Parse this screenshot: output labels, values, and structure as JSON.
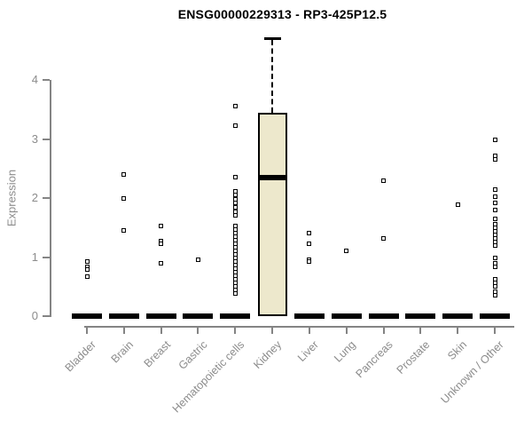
{
  "chart_data": {
    "type": "boxplot",
    "title": "ENSG00000229313 - RP3-425P12.5",
    "ylabel": "Expression",
    "xlabel": "",
    "ylim": [
      0,
      4.85
    ],
    "yticks": [
      0,
      1,
      2,
      3,
      4
    ],
    "grid": false,
    "legend": "none",
    "categories": [
      "Bladder",
      "Brain",
      "Breast",
      "Gastric",
      "Hematopoietic cells",
      "Kidney",
      "Liver",
      "Lung",
      "Pancreas",
      "Prostate",
      "Skin",
      "Unknown / Other"
    ],
    "boxes": [
      {
        "category": "Bladder",
        "q1": 0,
        "median": 0,
        "q3": 0,
        "whisker_low": 0,
        "whisker_high": 0
      },
      {
        "category": "Brain",
        "q1": 0,
        "median": 0,
        "q3": 0,
        "whisker_low": 0,
        "whisker_high": 0
      },
      {
        "category": "Breast",
        "q1": 0,
        "median": 0,
        "q3": 0,
        "whisker_low": 0,
        "whisker_high": 0
      },
      {
        "category": "Gastric",
        "q1": 0,
        "median": 0,
        "q3": 0,
        "whisker_low": 0,
        "whisker_high": 0
      },
      {
        "category": "Hematopoietic cells",
        "q1": 0,
        "median": 0,
        "q3": 0,
        "whisker_low": 0,
        "whisker_high": 0
      },
      {
        "category": "Kidney",
        "q1": 0,
        "median": 2.35,
        "q3": 3.44,
        "whisker_low": 0,
        "whisker_high": 4.7
      },
      {
        "category": "Liver",
        "q1": 0,
        "median": 0,
        "q3": 0,
        "whisker_low": 0,
        "whisker_high": 0
      },
      {
        "category": "Lung",
        "q1": 0,
        "median": 0,
        "q3": 0,
        "whisker_low": 0,
        "whisker_high": 0
      },
      {
        "category": "Pancreas",
        "q1": 0,
        "median": 0,
        "q3": 0,
        "whisker_low": 0,
        "whisker_high": 0
      },
      {
        "category": "Prostate",
        "q1": 0,
        "median": 0,
        "q3": 0,
        "whisker_low": 0,
        "whisker_high": 0
      },
      {
        "category": "Skin",
        "q1": 0,
        "median": 0,
        "q3": 0,
        "whisker_low": 0,
        "whisker_high": 0
      },
      {
        "category": "Unknown / Other",
        "q1": 0,
        "median": 0,
        "q3": 0,
        "whisker_low": 0,
        "whisker_high": 0
      }
    ],
    "outlier_points": [
      {
        "category": "Bladder",
        "values": [
          0.93,
          0.83,
          0.79,
          0.67
        ]
      },
      {
        "category": "Brain",
        "values": [
          2.4,
          1.99,
          1.45
        ]
      },
      {
        "category": "Breast",
        "values": [
          1.52,
          1.27,
          1.22,
          0.9
        ]
      },
      {
        "category": "Gastric",
        "values": [
          0.96
        ]
      },
      {
        "category": "Hematopoietic cells",
        "values": [
          3.55,
          3.22,
          2.36,
          2.12,
          2.05,
          1.98,
          1.91,
          1.84,
          1.77,
          1.7,
          1.52,
          1.46,
          1.4,
          1.34,
          1.28,
          1.22,
          1.16,
          1.1,
          1.04,
          0.98,
          0.92,
          0.86,
          0.8,
          0.74,
          0.68,
          0.62,
          0.56,
          0.5,
          0.44,
          0.38
        ]
      },
      {
        "category": "Kidney",
        "values": []
      },
      {
        "category": "Liver",
        "values": [
          1.41,
          1.23,
          0.96,
          0.92
        ]
      },
      {
        "category": "Lung",
        "values": [
          1.11
        ]
      },
      {
        "category": "Pancreas",
        "values": [
          2.3,
          1.32
        ]
      },
      {
        "category": "Prostate",
        "values": []
      },
      {
        "category": "Skin",
        "values": [
          1.88
        ]
      },
      {
        "category": "Unknown / Other",
        "values": [
          2.98,
          2.71,
          2.65,
          2.14,
          2.03,
          1.91,
          1.8,
          1.64,
          1.56,
          1.5,
          1.44,
          1.37,
          1.31,
          1.25,
          1.19,
          0.98,
          0.89,
          0.83,
          0.62,
          0.56,
          0.5,
          0.41,
          0.35
        ]
      }
    ],
    "colors": {
      "box_fill": "#EDE8CC",
      "box_border": "#000000",
      "median": "#000000",
      "point": "#000000",
      "axis": "#848484",
      "tick_label": "#8C8C8C",
      "title": "#000000",
      "background": "#FFFFFF"
    }
  }
}
